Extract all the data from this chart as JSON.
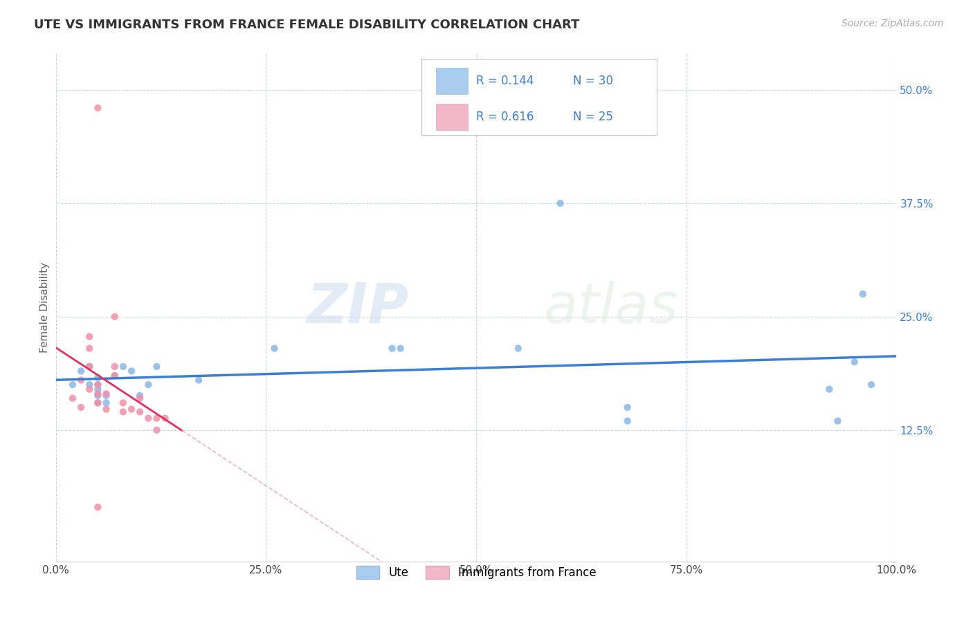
{
  "title": "UTE VS IMMIGRANTS FROM FRANCE FEMALE DISABILITY CORRELATION CHART",
  "source_text": "Source: ZipAtlas.com",
  "ylabel": "Female Disability",
  "watermark_zip": "ZIP",
  "watermark_atlas": "atlas",
  "xlim": [
    0,
    1.0
  ],
  "ylim": [
    -0.02,
    0.54
  ],
  "plot_ylim": [
    0.0,
    0.52
  ],
  "xtick_labels": [
    "0.0%",
    "",
    "25.0%",
    "",
    "50.0%",
    "",
    "75.0%",
    "",
    "100.0%"
  ],
  "xtick_values": [
    0.0,
    0.125,
    0.25,
    0.375,
    0.5,
    0.625,
    0.75,
    0.875,
    1.0
  ],
  "ytick_labels": [
    "12.5%",
    "25.0%",
    "37.5%",
    "50.0%"
  ],
  "ytick_values": [
    0.125,
    0.25,
    0.375,
    0.5
  ],
  "legend_R1": "R = 0.144",
  "legend_N1": "N = 30",
  "legend_R2": "R = 0.616",
  "legend_N2": "N = 25",
  "ute_legend_color": "#aaccee",
  "france_legend_color": "#f0b8c8",
  "ute_line_color": "#3a7fd5",
  "france_line_color": "#e03060",
  "france_dash_color": "#e8a0b0",
  "background_color": "#ffffff",
  "grid_color": "#c8d8e8",
  "ute_scatter_color": "#90bce8",
  "france_scatter_color": "#f090a8",
  "text_blue": "#3a7fd5",
  "ute_x": [
    0.02,
    0.03,
    0.04,
    0.04,
    0.05,
    0.05,
    0.05,
    0.05,
    0.05,
    0.06,
    0.06,
    0.07,
    0.08,
    0.09,
    0.1,
    0.11,
    0.12,
    0.17,
    0.26,
    0.4,
    0.41,
    0.55,
    0.6,
    0.68,
    0.68,
    0.92,
    0.93,
    0.95,
    0.96,
    0.97
  ],
  "ute_y": [
    0.175,
    0.19,
    0.175,
    0.195,
    0.155,
    0.163,
    0.17,
    0.175,
    0.183,
    0.155,
    0.163,
    0.185,
    0.195,
    0.19,
    0.163,
    0.175,
    0.195,
    0.18,
    0.215,
    0.215,
    0.215,
    0.215,
    0.375,
    0.135,
    0.15,
    0.17,
    0.135,
    0.2,
    0.275,
    0.175
  ],
  "france_x": [
    0.02,
    0.03,
    0.03,
    0.04,
    0.04,
    0.04,
    0.04,
    0.05,
    0.05,
    0.05,
    0.06,
    0.06,
    0.07,
    0.07,
    0.07,
    0.08,
    0.08,
    0.09,
    0.1,
    0.1,
    0.11,
    0.12,
    0.12,
    0.13,
    0.05
  ],
  "france_y": [
    0.16,
    0.18,
    0.15,
    0.17,
    0.195,
    0.215,
    0.228,
    0.155,
    0.165,
    0.175,
    0.148,
    0.165,
    0.185,
    0.195,
    0.25,
    0.145,
    0.155,
    0.148,
    0.16,
    0.145,
    0.138,
    0.125,
    0.138,
    0.138,
    0.48
  ],
  "france_bottom_x": [
    0.05
  ],
  "france_bottom_y": [
    0.04
  ]
}
